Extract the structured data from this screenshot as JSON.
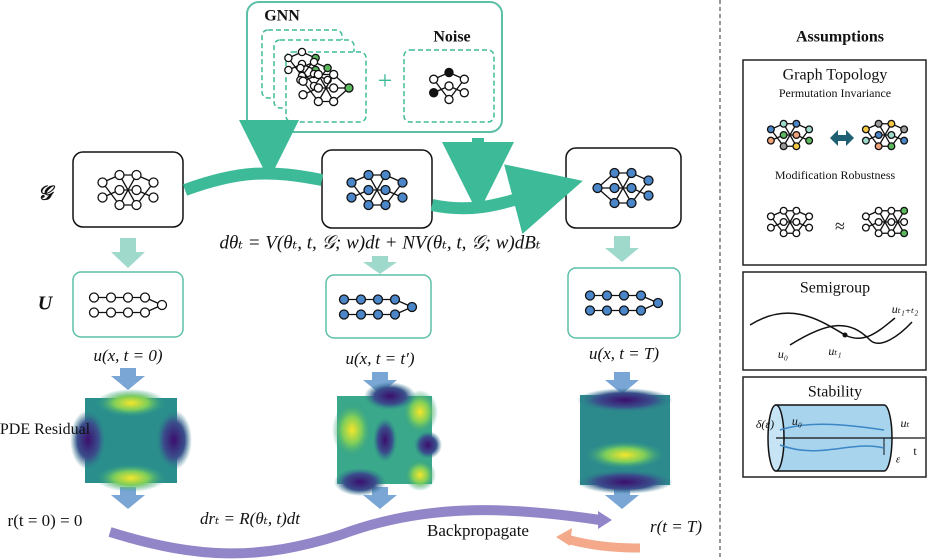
{
  "gnn": {
    "label": "GNN"
  },
  "noise": {
    "label": "Noise"
  },
  "plus": "+",
  "rows": {
    "graph": "𝒢",
    "solution": "U",
    "residual": "PDE Residual"
  },
  "equation": "dθₜ = V(θₜ, t, 𝒢; w)dt + NV(θₜ, t, 𝒢; w)dBₜ",
  "states": [
    "u(x, t = 0)",
    "u(x, t = t′)",
    "u(x, t = T)"
  ],
  "residual_start": "r(t = 0) = 0",
  "residual_equation": "drₜ = R(θₜ, t)dt",
  "backpropagate": "Backpropagate",
  "residual_end": "r(t = T)",
  "assumptions": {
    "title": "Assumptions",
    "graph_topology": {
      "title": "Graph Topology",
      "permutation": "Permutation Invariance",
      "modification": "Modification Robustness",
      "approx": "≈"
    },
    "semigroup": {
      "title": "Semigroup",
      "u0": "u₀",
      "ut1": "uₜ₁",
      "ut1t2": "uₜ₁₊ₜ₂"
    },
    "stability": {
      "title": "Stability",
      "delta": "δ(ε)",
      "u0": "u₀",
      "ut": "uₜ",
      "t": "t",
      "eps": "ε"
    }
  }
}
